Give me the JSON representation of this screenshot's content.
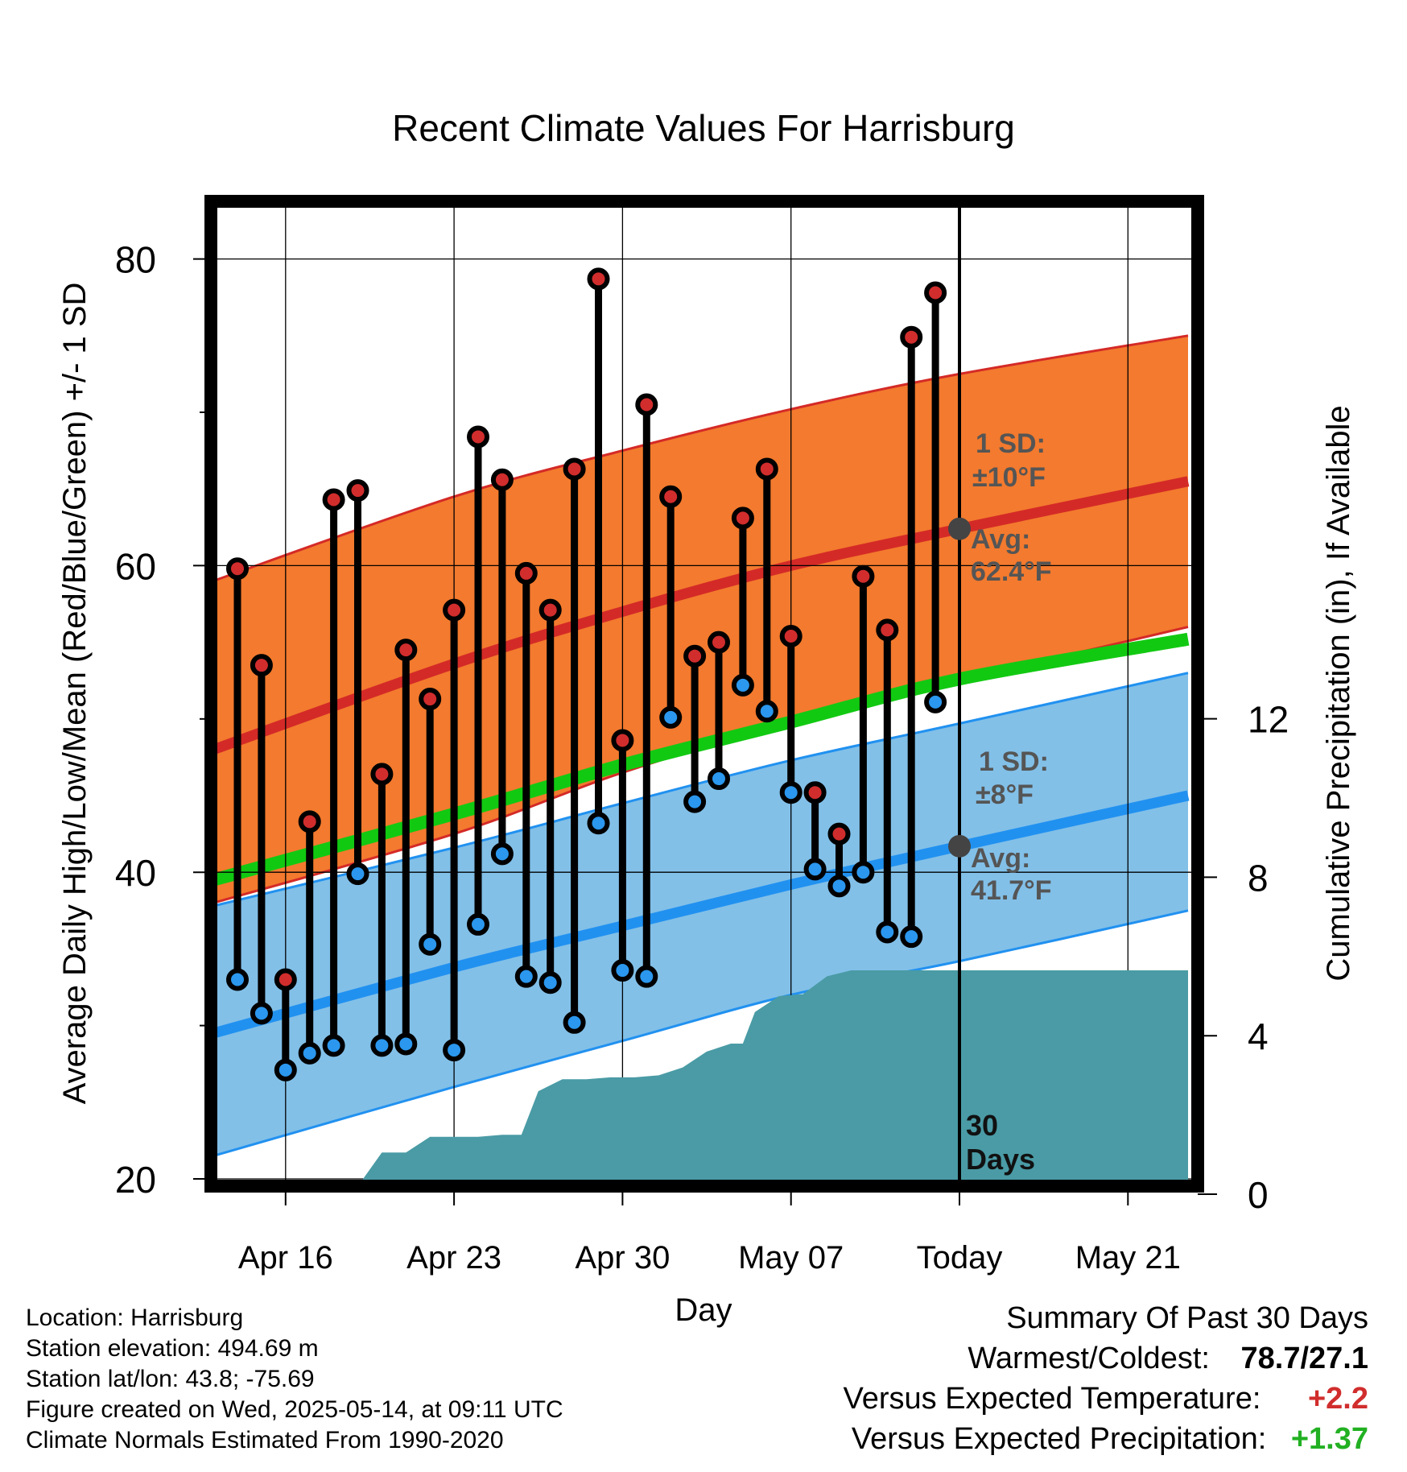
{
  "chart_data": {
    "type": "line",
    "title": "Recent Climate Values For Harrisburg",
    "xlabel": "Day",
    "ylabel_left": "Average Daily High/Low/Mean (Red/Blue/Green) +/- 1 SD",
    "ylabel_right": "Cumulative Precipitation (in), If Available",
    "x_day_range": [
      -32,
      9
    ],
    "ylim_left": [
      20,
      84
    ],
    "ylim_right": [
      0,
      20
    ],
    "left_ticks": [
      20,
      40,
      60,
      80
    ],
    "left_minor_ticks": [
      30,
      50,
      70
    ],
    "right_ticks": [
      0,
      4,
      8,
      12
    ],
    "x_ticks": [
      {
        "day": -28,
        "label": "Apr 16"
      },
      {
        "day": -21,
        "label": "Apr 23"
      },
      {
        "day": -14,
        "label": "Apr 30"
      },
      {
        "day": -7,
        "label": "May 07"
      },
      {
        "day": 0,
        "label": "Today"
      },
      {
        "day": 7,
        "label": "May 21"
      }
    ],
    "normals": {
      "days": [
        -31,
        -21,
        -14,
        -7,
        0,
        9.5
      ],
      "high_mean": [
        48,
        53.6,
        57,
        60,
        62.4,
        65.5
      ],
      "high_upper": [
        59,
        64.5,
        67.5,
        70.2,
        72.5,
        75
      ],
      "high_lower": [
        38,
        42.5,
        46.5,
        49.8,
        52.5,
        56
      ],
      "avg_mean": [
        39.5,
        43.8,
        47,
        49.8,
        52.6,
        55.2
      ],
      "low_mean": [
        29.5,
        33.8,
        36.5,
        39.2,
        41.7,
        45
      ],
      "low_upper": [
        37.8,
        41.6,
        44.5,
        47.3,
        49.7,
        53
      ],
      "low_lower": [
        21.5,
        26,
        29,
        32,
        34.2,
        37.5
      ],
      "high_sd_label": "1 SD:",
      "high_sd_value": "±10°F",
      "high_avg_label": "Avg:",
      "high_avg_value": "62.4°F",
      "low_sd_label": "1 SD:",
      "low_sd_value": "±8°F",
      "low_avg_label": "Avg:",
      "low_avg_value": "41.7°F"
    },
    "daily": [
      {
        "day": -30,
        "high": 59.8,
        "low": 33.0
      },
      {
        "day": -29,
        "high": 53.5,
        "low": 30.8
      },
      {
        "day": -28,
        "high": 33.0,
        "low": 27.1
      },
      {
        "day": -27,
        "high": 43.3,
        "low": 28.2
      },
      {
        "day": -26,
        "high": 64.3,
        "low": 28.7
      },
      {
        "day": -25,
        "high": 64.9,
        "low": 39.9
      },
      {
        "day": -24,
        "high": 46.4,
        "low": 28.7
      },
      {
        "day": -23,
        "high": 54.5,
        "low": 28.8
      },
      {
        "day": -22,
        "high": 51.3,
        "low": 35.3
      },
      {
        "day": -21,
        "high": 57.1,
        "low": 28.4
      },
      {
        "day": -20,
        "high": 68.4,
        "low": 36.6
      },
      {
        "day": -19,
        "high": 65.6,
        "low": 41.2
      },
      {
        "day": -18,
        "high": 59.5,
        "low": 33.2
      },
      {
        "day": -17,
        "high": 57.1,
        "low": 32.8
      },
      {
        "day": -16,
        "high": 66.3,
        "low": 30.2
      },
      {
        "day": -15,
        "high": 78.7,
        "low": 43.2
      },
      {
        "day": -14,
        "high": 48.6,
        "low": 33.6
      },
      {
        "day": -13,
        "high": 70.5,
        "low": 33.2
      },
      {
        "day": -12,
        "high": 64.5,
        "low": 50.1
      },
      {
        "day": -11,
        "high": 54.1,
        "low": 44.6
      },
      {
        "day": -10,
        "high": 55.0,
        "low": 46.1
      },
      {
        "day": -9,
        "high": 63.1,
        "low": 52.2
      },
      {
        "day": -8,
        "high": 66.3,
        "low": 50.5
      },
      {
        "day": -7,
        "high": 55.4,
        "low": 45.2
      },
      {
        "day": -6,
        "high": 45.2,
        "low": 40.2
      },
      {
        "day": -5,
        "high": 42.5,
        "low": 39.1
      },
      {
        "day": -4,
        "high": 59.3,
        "low": 40.0
      },
      {
        "day": -3,
        "high": 55.8,
        "low": 36.1
      },
      {
        "day": -2,
        "high": 74.9,
        "low": 35.8
      },
      {
        "day": -1,
        "high": 77.8,
        "low": 51.1
      }
    ],
    "precip_cumulative": {
      "days": [
        -31.5,
        -29,
        -27,
        -25,
        -24,
        -23,
        -22,
        -21,
        -20,
        -19,
        -18.2,
        -17.5,
        -16.5,
        -15.5,
        -14.5,
        -13.5,
        -12.5,
        -11.5,
        -10.5,
        -9.5,
        -9,
        -8.5,
        -7.5,
        -6.5,
        -5.5,
        -4.5,
        -3.5,
        -3,
        9.5
      ],
      "values": [
        0,
        0.1,
        0.15,
        0.2,
        1.05,
        1.05,
        1.45,
        1.45,
        1.45,
        1.5,
        1.5,
        2.6,
        2.9,
        2.9,
        2.95,
        2.95,
        3,
        3.2,
        3.6,
        3.8,
        3.8,
        4.6,
        5,
        5.05,
        5.5,
        5.65,
        5.65,
        5.65,
        5.65
      ]
    },
    "annotations": {
      "days_label_number": "30",
      "days_label_text": "Days"
    },
    "colors": {
      "high_band": "#f37a2e",
      "high_line": "#d42a27",
      "low_band": "#82c0e8",
      "low_line": "#2191f0",
      "avg_line": "#12c912",
      "precip_fill": "#4a9ba5",
      "high_dot": "#d12d2d",
      "low_dot": "#2b97ee",
      "gray_text": "#555555"
    }
  },
  "info": {
    "location": "Location: Harrisburg",
    "elevation": "Station elevation: 494.69 m",
    "latlon": "Station lat/lon: 43.8; -75.69",
    "created": "Figure created on Wed, 2025-05-14, at 09:11 UTC",
    "normals": "Climate Normals Estimated From 1990-2020"
  },
  "summary": {
    "title": "Summary Of Past 30 Days",
    "warm_cold_label": "Warmest/Coldest:",
    "warm_cold_value": "78.7/27.1",
    "temp_label": "Versus Expected Temperature:",
    "temp_value": "+2.2",
    "precip_label": "Versus Expected Precipitation:",
    "precip_value": "+1.37",
    "temp_color": "#d12d2d",
    "precip_color": "#22b022"
  }
}
